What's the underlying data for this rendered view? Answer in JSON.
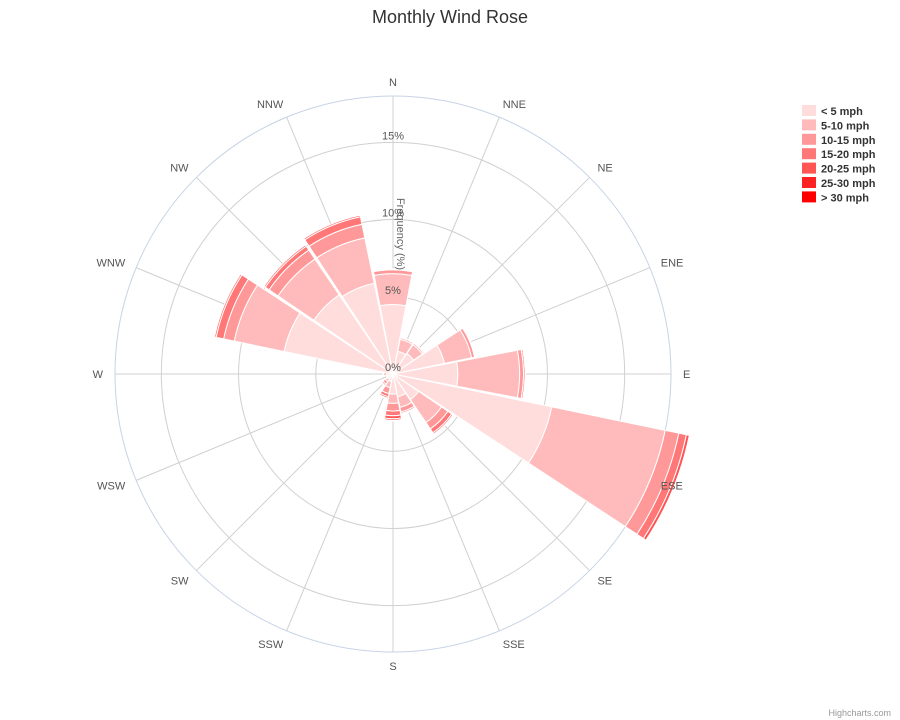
{
  "title": "Monthly Wind Rose",
  "credits": "Highcharts.com",
  "chart_data": {
    "type": "bar",
    "subtype": "polar-stacked-column",
    "title": "Monthly Wind Rose",
    "ylabel": "Frequency (%)",
    "ylim": [
      0,
      18
    ],
    "y_ticks": [
      {
        "value": 0,
        "label": "0%"
      },
      {
        "value": 5,
        "label": "5%"
      },
      {
        "value": 10,
        "label": "10%"
      },
      {
        "value": 15,
        "label": "15%"
      }
    ],
    "categories": [
      "N",
      "NNE",
      "NE",
      "ENE",
      "E",
      "ESE",
      "SE",
      "SSE",
      "S",
      "SSW",
      "SW",
      "WSW",
      "W",
      "WNW",
      "NW",
      "NNW"
    ],
    "legend_position": "top-right",
    "series": [
      {
        "name": "< 5 mph",
        "color": "#ffdddd",
        "values": [
          4.5,
          1.5,
          1.6,
          3.4,
          4.2,
          10.5,
          2.0,
          1.5,
          1.3,
          0.5,
          0.4,
          0.3,
          0.4,
          7.2,
          6.2,
          6.0
        ]
      },
      {
        "name": "5-10 mph",
        "color": "#ffbbbb",
        "values": [
          2.0,
          0.8,
          0.7,
          1.8,
          4.0,
          7.5,
          1.8,
          0.7,
          0.6,
          0.4,
          0.2,
          0.1,
          0.2,
          3.3,
          2.8,
          3.0
        ]
      },
      {
        "name": "10-15 mph",
        "color": "#ff9999",
        "values": [
          0.25,
          0.1,
          0.1,
          0.2,
          0.25,
          0.9,
          0.5,
          0.3,
          0.5,
          0.4,
          0.2,
          0.05,
          0.05,
          0.7,
          0.7,
          0.9
        ]
      },
      {
        "name": "15-20 mph",
        "color": "#ff7777",
        "values": [
          0.05,
          0.02,
          0.02,
          0.05,
          0.1,
          0.5,
          0.3,
          0.1,
          0.3,
          0.2,
          0.1,
          0.0,
          0.0,
          0.5,
          0.3,
          0.5
        ]
      },
      {
        "name": "20-25 mph",
        "color": "#ff5555",
        "values": [
          0.0,
          0.0,
          0.0,
          0.0,
          0.05,
          0.2,
          0.1,
          0.05,
          0.2,
          0.1,
          0.05,
          0.0,
          0.0,
          0.1,
          0.1,
          0.1
        ]
      },
      {
        "name": "25-30 mph",
        "color": "#ff2222",
        "values": [
          0.0,
          0.0,
          0.0,
          0.0,
          0.0,
          0.05,
          0.05,
          0.0,
          0.1,
          0.05,
          0.0,
          0.0,
          0.0,
          0.0,
          0.0,
          0.0
        ]
      },
      {
        "name": "> 30 mph",
        "color": "#ff0000",
        "values": [
          0.0,
          0.0,
          0.0,
          0.0,
          0.0,
          0.0,
          0.0,
          0.0,
          0.05,
          0.0,
          0.0,
          0.0,
          0.0,
          0.0,
          0.0,
          0.0
        ]
      }
    ]
  }
}
